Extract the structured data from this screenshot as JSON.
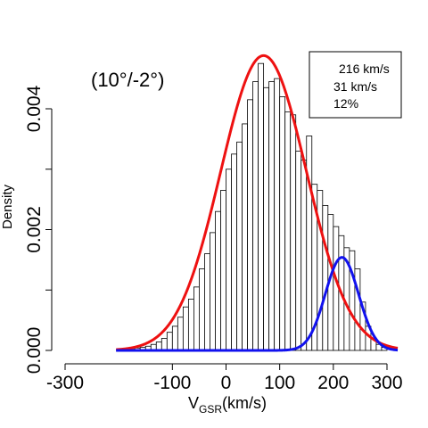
{
  "chart_data": {
    "type": "bar",
    "title": "",
    "panel_label": "(10°/-2°)",
    "xlabel": {
      "main": "V",
      "sub": "GSR",
      "unit": "(km/s)"
    },
    "ylabel": "Density",
    "xlim": [
      -300,
      320
    ],
    "ylim": [
      0,
      0.005
    ],
    "x_ticks": [
      -300,
      -100,
      0,
      100,
      200,
      300
    ],
    "y_ticks": [
      0,
      0.002,
      0.004
    ],
    "y_tick_labels": [
      "0.000",
      "0.002",
      "0.004"
    ],
    "bin_width": 10,
    "histogram": [
      {
        "x0": -190,
        "density": 3e-05
      },
      {
        "x0": -180,
        "density": 2e-05
      },
      {
        "x0": -170,
        "density": 4e-05
      },
      {
        "x0": -160,
        "density": 5e-05
      },
      {
        "x0": -150,
        "density": 7e-05
      },
      {
        "x0": -140,
        "density": 0.0001
      },
      {
        "x0": -130,
        "density": 0.00014
      },
      {
        "x0": -120,
        "density": 0.0002
      },
      {
        "x0": -110,
        "density": 0.0003
      },
      {
        "x0": -100,
        "density": 0.0004
      },
      {
        "x0": -90,
        "density": 0.00055
      },
      {
        "x0": -80,
        "density": 0.00072
      },
      {
        "x0": -70,
        "density": 0.00085
      },
      {
        "x0": -60,
        "density": 0.00105
      },
      {
        "x0": -50,
        "density": 0.00135
      },
      {
        "x0": -40,
        "density": 0.0016
      },
      {
        "x0": -30,
        "density": 0.00195
      },
      {
        "x0": -20,
        "density": 0.0023
      },
      {
        "x0": -10,
        "density": 0.00265
      },
      {
        "x0": 0,
        "density": 0.003
      },
      {
        "x0": 10,
        "density": 0.00325
      },
      {
        "x0": 20,
        "density": 0.00345
      },
      {
        "x0": 30,
        "density": 0.00375
      },
      {
        "x0": 40,
        "density": 0.00415
      },
      {
        "x0": 50,
        "density": 0.00445
      },
      {
        "x0": 60,
        "density": 0.00475
      },
      {
        "x0": 70,
        "density": 0.00435
      },
      {
        "x0": 80,
        "density": 0.00445
      },
      {
        "x0": 90,
        "density": 0.0045
      },
      {
        "x0": 100,
        "density": 0.0042
      },
      {
        "x0": 110,
        "density": 0.00395
      },
      {
        "x0": 120,
        "density": 0.0039
      },
      {
        "x0": 130,
        "density": 0.0033
      },
      {
        "x0": 140,
        "density": 0.00315
      },
      {
        "x0": 150,
        "density": 0.00355
      },
      {
        "x0": 160,
        "density": 0.00275
      },
      {
        "x0": 170,
        "density": 0.00265
      },
      {
        "x0": 180,
        "density": 0.0024
      },
      {
        "x0": 190,
        "density": 0.00225
      },
      {
        "x0": 200,
        "density": 0.00205
      },
      {
        "x0": 210,
        "density": 0.0019
      },
      {
        "x0": 220,
        "density": 0.0017
      },
      {
        "x0": 230,
        "density": 0.00165
      },
      {
        "x0": 240,
        "density": 0.00135
      },
      {
        "x0": 250,
        "density": 0.0008
      },
      {
        "x0": 260,
        "density": 0.0004
      },
      {
        "x0": 270,
        "density": 0.0002
      },
      {
        "x0": 280,
        "density": 0.0001
      },
      {
        "x0": 290,
        "density": 5e-05
      }
    ],
    "series": [
      {
        "color": "#ee1111",
        "shape": "gaussian",
        "mu": 70,
        "sigma": 80,
        "peak_density": 0.00488,
        "x_range": [
          -205,
          320
        ]
      },
      {
        "color": "#1111ee",
        "shape": "gaussian",
        "mu": 216,
        "sigma": 31,
        "peak_density": 0.00154,
        "x_range": [
          -205,
          320
        ]
      }
    ],
    "legend": {
      "placement": "top-right",
      "entries": [
        "216 km/s",
        "31 km/s",
        "12%"
      ]
    }
  }
}
